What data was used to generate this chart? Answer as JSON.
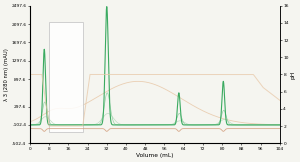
{
  "xlim": [
    0,
    104
  ],
  "ylim_left": [
    -502.4,
    2497.6
  ],
  "ylim_right": [
    0,
    16
  ],
  "yticks_left": [
    -502.4,
    -102.4,
    297.6,
    897.6,
    1297.6,
    1697.6,
    2097.6,
    2497.6
  ],
  "ytick_labels_left": [
    "-502.4",
    "-102.4",
    "297.6",
    "897.6",
    "1297.6",
    "1697.6",
    "2097.6",
    "2497.6"
  ],
  "yticks_right": [
    0,
    2,
    4,
    6,
    8,
    10,
    12,
    14,
    16
  ],
  "xticks": [
    0,
    8,
    16,
    24,
    32,
    40,
    48,
    56,
    64,
    72,
    80,
    88,
    96,
    104
  ],
  "xlabel": "Volume (mL)",
  "ylabel_left": "λ 3 (280 nm) (mAU)",
  "ylabel_right": "pH",
  "background_color": "#f5f5f0",
  "uv_color": "#3aaa60",
  "uv_light1": "#88cc99",
  "uv_light2": "#b0d8b8",
  "cond_color": "#d4a080",
  "ph_color": "#e8c8a8",
  "box_edge": "#c8c8c8"
}
